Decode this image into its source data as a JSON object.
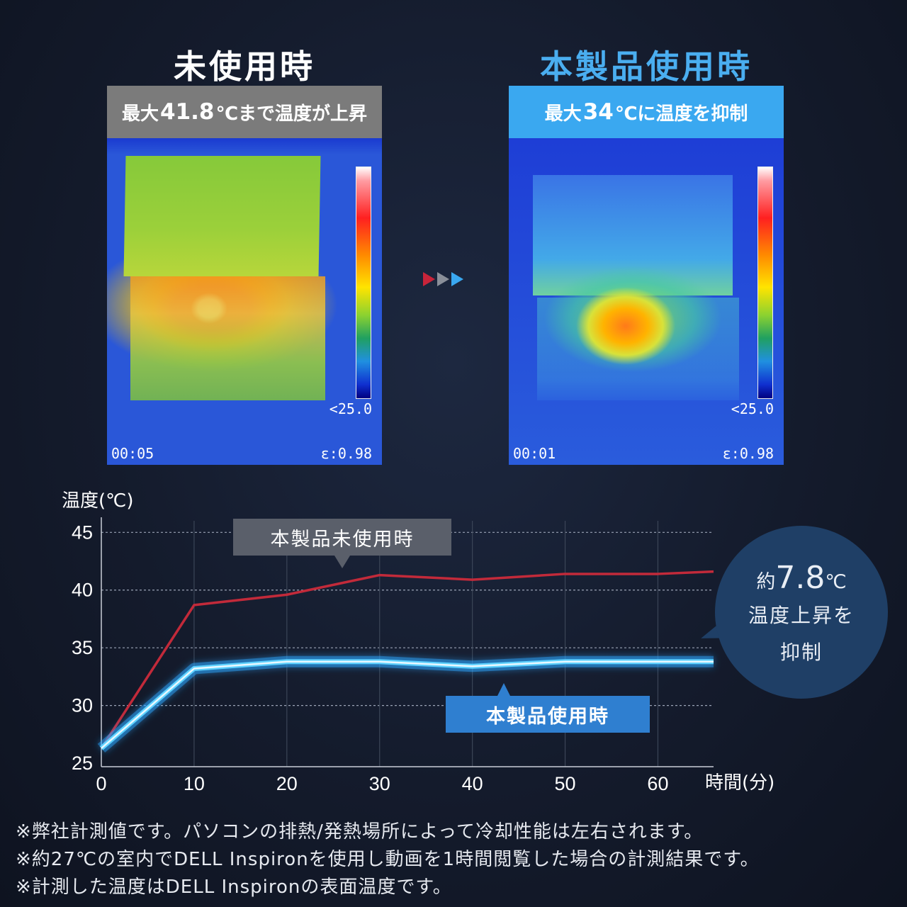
{
  "panels": {
    "left": {
      "title": "未使用時",
      "banner_pre": "最大",
      "banner_value": "41.8",
      "banner_post": "℃まで温度が上昇",
      "scale_min": "<25.0",
      "time": "00:05",
      "emissivity": "ε:0.98"
    },
    "right": {
      "title": "本製品使用時",
      "banner_pre": "最大",
      "banner_value": "34",
      "banner_post": "℃に温度を抑制",
      "scale_min": "<25.0",
      "time": "00:01",
      "emissivity": "ε:0.98"
    }
  },
  "colors": {
    "before_line": "#c22a3a",
    "after_line": "#5fd2ff",
    "accent_blue": "#3aa8f0",
    "arrow_red": "#c8243a",
    "arrow_gray": "#8a8f99",
    "arrow_blue": "#3aa8f0"
  },
  "chart_data": {
    "type": "line",
    "ylabel": "温度(℃)",
    "xlabel": "時間(分)",
    "x": [
      0,
      10,
      20,
      30,
      40,
      50,
      60,
      66
    ],
    "xticks": [
      0,
      10,
      20,
      30,
      40,
      50,
      60
    ],
    "yticks": [
      25,
      30,
      35,
      40,
      45
    ],
    "xlim": [
      0,
      66
    ],
    "ylim": [
      24.7,
      46
    ],
    "grid": true,
    "series": [
      {
        "name": "本製品未使用時",
        "values": [
          26.3,
          38.7,
          39.6,
          41.3,
          40.9,
          41.4,
          41.4,
          41.6
        ]
      },
      {
        "name": "本製品使用時",
        "values": [
          26.3,
          33.2,
          33.8,
          33.8,
          33.4,
          33.8,
          33.8,
          33.8
        ]
      }
    ]
  },
  "bubble": {
    "prefix": "約",
    "value": "7.8",
    "unit": "℃",
    "line2": "温度上昇を",
    "line3": "抑制"
  },
  "notes": [
    "※弊社計測値です。パソコンの排熱/発熱場所によって冷却性能は左右されます。",
    "※約27℃の室内でDELL Inspironを使用し動画を1時間閲覧した場合の計測結果です。",
    "※計測した温度はDELL Inspironの表面温度です。"
  ]
}
